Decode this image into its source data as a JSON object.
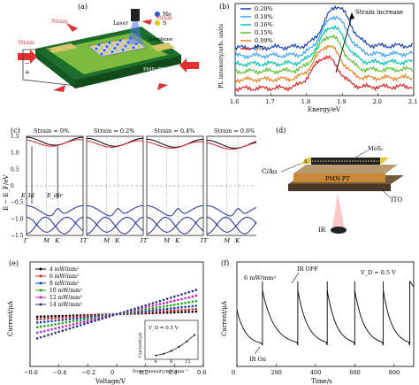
{
  "panels": {
    "a": {
      "label": "(a)",
      "strain": "Strain",
      "laser": "Laser",
      "legend_mo": "Mo",
      "legend_s": "S",
      "graphene": "Graphene",
      "substrate": "PMN-PT",
      "colors": {
        "mo": "#1f5bd6",
        "s": "#e5c400",
        "substrate": "#7dbb3f",
        "arrow": "#e03030"
      }
    },
    "b": {
      "label": "(b)",
      "annotation": "Strain increase",
      "chart_data": {
        "type": "line",
        "xlabel": "Energy/eV",
        "ylabel": "PL intensity/arb. units",
        "xlim": [
          1.6,
          2.1
        ],
        "xticks": [
          "1.6",
          "1.7",
          "1.8",
          "1.9",
          "2.0",
          "2.1"
        ],
        "series": [
          {
            "name": "0.20%",
            "color": "#1a3fb8",
            "peak_energy": 1.885,
            "offset": 0.55
          },
          {
            "name": "0.18%",
            "color": "#3aa0ff",
            "peak_energy": 1.878,
            "offset": 0.44
          },
          {
            "name": "0.16%",
            "color": "#00c8b0",
            "peak_energy": 1.872,
            "offset": 0.33
          },
          {
            "name": "0.15%",
            "color": "#5ac030",
            "peak_energy": 1.866,
            "offset": 0.23
          },
          {
            "name": "0.09%",
            "color": "#f08020",
            "peak_energy": 1.86,
            "offset": 0.12
          },
          {
            "name": "0%",
            "color": "#e02020",
            "peak_energy": 1.853,
            "offset": 0.0
          }
        ]
      }
    },
    "c": {
      "label": "(c)",
      "chart_data": {
        "type": "line",
        "ylabel": "E − E_F/eV",
        "ylim": [
          -1.5,
          1.5
        ],
        "yticks": [
          "1.5",
          "1.0",
          "0.5",
          "0",
          "−0.5",
          "−1.0",
          "−1.5"
        ],
        "kpoints": [
          "Γ",
          "M",
          "K",
          "Γ"
        ],
        "subplots": [
          {
            "title": "Strain = 0%",
            "shift": 0.0
          },
          {
            "title": "Strain = 0.2%",
            "shift": 0.03
          },
          {
            "title": "Strain = 0.4%",
            "shift": 0.06
          },
          {
            "title": "Strain = 0.6%",
            "shift": 0.09
          }
        ],
        "annotations": {
          "e_id": "E_Id",
          "e_dir": "E_dir"
        }
      }
    },
    "d": {
      "label": "(d)",
      "mos2": "MoS₂",
      "s": "S",
      "d": "D",
      "cau": "C/Au",
      "pmnpt": "PMN-PT",
      "ito": "ITO",
      "ir": "IR"
    },
    "e": {
      "label": "(e)",
      "chart_data": {
        "type": "line",
        "xlabel": "Voltage/V",
        "ylabel": "Current/μA",
        "xlim": [
          -0.6,
          0.6
        ],
        "xticks": [
          "−0.6",
          "−0.4",
          "−0.2",
          "0",
          "0.2",
          "0.4",
          "0.6"
        ],
        "series": [
          {
            "name": "4 mW/mm²",
            "color": "#000000",
            "slope": 0.12
          },
          {
            "name": "6 mW/mm²",
            "color": "#e02020",
            "slope": 0.24
          },
          {
            "name": "8 mW/mm²",
            "color": "#1a3fb8",
            "slope": 0.4
          },
          {
            "name": "10 mW/mm²",
            "color": "#1aa81a",
            "slope": 0.62
          },
          {
            "name": "12 mW/mm²",
            "color": "#d11ad1",
            "slope": 0.88
          },
          {
            "name": "14 mW/mm²",
            "color": "#2a3080",
            "slope": 1.15
          }
        ],
        "inset": {
          "title": "V_D = 0.5 V",
          "xlabel": "Power density/mW·mm⁻²",
          "ylabel": "Current/μA",
          "xticks": [
            "4",
            "8",
            "12"
          ],
          "x": [
            4,
            6,
            8,
            10,
            12,
            14
          ],
          "y": [
            0.1,
            0.18,
            0.32,
            0.52,
            0.78,
            1.1
          ]
        }
      }
    },
    "f": {
      "label": "(f)",
      "power": "6 mW/mm²",
      "ir_off": "IR OFF",
      "ir_on": "IR On",
      "vd": "V_D = 0.5 V",
      "chart_data": {
        "type": "line",
        "xlabel": "Time/s",
        "ylabel": "Current/μA",
        "xlim": [
          0,
          900
        ],
        "xticks": [
          "0",
          "200",
          "400",
          "600",
          "800"
        ],
        "cycles": [
          {
            "on": 0,
            "off": 130
          },
          {
            "on": 130,
            "off": 310
          },
          {
            "on": 310,
            "off": 460
          },
          {
            "on": 460,
            "off": 600
          },
          {
            "on": 600,
            "off": 745
          },
          {
            "on": 745,
            "off": 880
          }
        ]
      }
    }
  }
}
